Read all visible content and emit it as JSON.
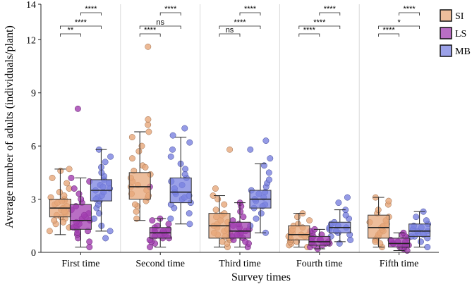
{
  "chart_data": {
    "type": "boxplot",
    "title": "",
    "xlabel": "Survey times",
    "ylabel": "Average number of adults (individuals/plant)",
    "ylim": [
      0,
      14
    ],
    "yticks": [
      0,
      3,
      6,
      9,
      12,
      14
    ],
    "categories": [
      "First time",
      "Second time",
      "Third time",
      "Fourth time",
      "Fifth time"
    ],
    "series": [
      {
        "name": "SI",
        "color": "#E7A77A",
        "edge": "#9a6a48",
        "boxes": [
          {
            "min": 1.0,
            "q1": 2.0,
            "median": 2.5,
            "q3": 3.0,
            "max": 4.7
          },
          {
            "min": 1.8,
            "q1": 3.0,
            "median": 3.7,
            "q3": 4.5,
            "max": 6.8
          },
          {
            "min": 0.3,
            "q1": 0.8,
            "median": 1.5,
            "q3": 2.2,
            "max": 3.2
          },
          {
            "min": 0.3,
            "q1": 0.7,
            "median": 1.0,
            "q3": 1.5,
            "max": 2.2
          },
          {
            "min": 0.3,
            "q1": 0.8,
            "median": 1.4,
            "q3": 2.1,
            "max": 3.1
          }
        ],
        "points": [
          [
            1.2,
            1.4,
            1.6,
            1.8,
            1.9,
            2.0,
            2.1,
            2.2,
            2.3,
            2.4,
            2.5,
            2.5,
            2.6,
            2.7,
            2.8,
            2.9,
            3.0,
            3.1,
            3.2,
            3.4,
            3.6,
            3.9,
            4.2,
            4.6,
            4.7,
            2.3,
            1.7,
            2.9
          ],
          [
            1.9,
            2.3,
            2.6,
            2.9,
            3.1,
            3.3,
            3.5,
            3.7,
            3.8,
            4.0,
            4.2,
            4.4,
            4.6,
            4.9,
            5.3,
            5.7,
            6.0,
            6.5,
            6.8,
            7.2,
            7.5,
            11.6,
            3.2,
            4.8,
            2.7
          ],
          [
            0.3,
            0.5,
            0.7,
            0.8,
            0.9,
            1.0,
            1.1,
            1.2,
            1.3,
            1.4,
            1.5,
            1.6,
            1.7,
            1.8,
            2.0,
            2.1,
            2.2,
            2.4,
            2.7,
            3.0,
            3.2,
            3.6,
            5.8,
            1.1,
            0.6
          ],
          [
            0.3,
            0.4,
            0.5,
            0.6,
            0.7,
            0.8,
            0.9,
            1.0,
            1.0,
            1.1,
            1.2,
            1.3,
            1.4,
            1.5,
            1.6,
            1.8,
            2.0,
            2.2,
            0.9,
            0.6
          ],
          [
            0.3,
            0.5,
            0.7,
            0.8,
            0.9,
            1.0,
            1.1,
            1.2,
            1.3,
            1.4,
            1.5,
            1.6,
            1.8,
            2.0,
            2.2,
            2.4,
            2.7,
            2.9,
            3.1,
            1.7,
            0.6
          ]
        ]
      },
      {
        "name": "LS",
        "color": "#A23DB0",
        "edge": "#5a1f63",
        "boxes": [
          {
            "min": 0.3,
            "q1": 1.3,
            "median": 1.8,
            "q3": 2.7,
            "max": 4.2
          },
          {
            "min": 0.3,
            "q1": 0.8,
            "median": 1.1,
            "q3": 1.4,
            "max": 1.9
          },
          {
            "min": 0.3,
            "q1": 0.8,
            "median": 1.2,
            "q3": 1.7,
            "max": 2.8
          },
          {
            "min": 0.2,
            "q1": 0.4,
            "median": 0.6,
            "q3": 0.9,
            "max": 1.3
          },
          {
            "min": 0.1,
            "q1": 0.3,
            "median": 0.5,
            "q3": 0.8,
            "max": 1.1
          }
        ],
        "points": [
          [
            0.3,
            0.6,
            0.8,
            1.0,
            1.2,
            1.3,
            1.4,
            1.5,
            1.6,
            1.7,
            1.8,
            1.9,
            2.0,
            2.2,
            2.4,
            2.6,
            2.8,
            3.0,
            3.3,
            3.6,
            4.0,
            4.2,
            8.1,
            1.1,
            2.1
          ],
          [
            0.3,
            0.5,
            0.6,
            0.7,
            0.8,
            0.9,
            1.0,
            1.0,
            1.1,
            1.2,
            1.3,
            1.4,
            1.5,
            1.6,
            1.8,
            1.9,
            3.7,
            0.8,
            1.2
          ],
          [
            0.3,
            0.5,
            0.7,
            0.8,
            0.9,
            1.0,
            1.1,
            1.2,
            1.3,
            1.4,
            1.5,
            1.6,
            1.8,
            2.0,
            2.3,
            2.6,
            2.8,
            0.6,
            1.0
          ],
          [
            0.2,
            0.3,
            0.4,
            0.5,
            0.5,
            0.6,
            0.6,
            0.7,
            0.8,
            0.9,
            1.0,
            1.1,
            1.2,
            1.3,
            0.4,
            0.7
          ],
          [
            0.1,
            0.2,
            0.3,
            0.4,
            0.4,
            0.5,
            0.5,
            0.6,
            0.7,
            0.8,
            0.9,
            1.0,
            1.1,
            0.3,
            0.6
          ]
        ]
      },
      {
        "name": "MB",
        "color": "#7A82E0",
        "edge": "#3c4393",
        "boxes": [
          {
            "min": 1.2,
            "q1": 2.9,
            "median": 3.5,
            "q3": 4.1,
            "max": 5.8
          },
          {
            "min": 1.6,
            "q1": 2.8,
            "median": 3.4,
            "q3": 4.2,
            "max": 6.5
          },
          {
            "min": 1.1,
            "q1": 2.5,
            "median": 3.0,
            "q3": 3.5,
            "max": 5.0
          },
          {
            "min": 0.6,
            "q1": 1.1,
            "median": 1.4,
            "q3": 1.7,
            "max": 2.4
          },
          {
            "min": 0.3,
            "q1": 0.9,
            "median": 1.2,
            "q3": 1.6,
            "max": 2.3
          }
        ],
        "points": [
          [
            1.2,
            1.5,
            1.9,
            2.2,
            2.5,
            2.7,
            2.9,
            3.1,
            3.2,
            3.4,
            3.5,
            3.6,
            3.8,
            3.9,
            4.1,
            4.3,
            4.5,
            4.8,
            5.1,
            5.4,
            5.8,
            0.8,
            3.0,
            3.7
          ],
          [
            1.6,
            1.9,
            2.2,
            2.5,
            2.8,
            3.0,
            3.1,
            3.3,
            3.4,
            3.6,
            3.8,
            4.0,
            4.2,
            4.4,
            4.7,
            5.0,
            5.4,
            5.8,
            6.2,
            6.6,
            7.0,
            3.2,
            2.7
          ],
          [
            1.1,
            1.5,
            1.9,
            2.2,
            2.5,
            2.7,
            2.9,
            3.0,
            3.1,
            3.3,
            3.5,
            3.7,
            3.9,
            4.1,
            4.5,
            4.9,
            5.3,
            5.8,
            6.3,
            2.6,
            3.4
          ],
          [
            0.5,
            0.7,
            0.9,
            1.1,
            1.2,
            1.3,
            1.4,
            1.5,
            1.6,
            1.7,
            1.9,
            2.1,
            2.4,
            2.8,
            3.1,
            1.0,
            1.4
          ],
          [
            0.3,
            0.6,
            0.8,
            0.9,
            1.0,
            1.1,
            1.2,
            1.3,
            1.4,
            1.5,
            1.6,
            1.8,
            2.0,
            2.3,
            1.2,
            0.9
          ]
        ]
      }
    ],
    "significance": [
      [
        {
          "pair": "SI-LS",
          "label": "**"
        },
        {
          "pair": "SI-MB",
          "label": "****"
        },
        {
          "pair": "LS-MB",
          "label": "****"
        }
      ],
      [
        {
          "pair": "SI-LS",
          "label": "****"
        },
        {
          "pair": "SI-MB",
          "label": "ns"
        },
        {
          "pair": "LS-MB",
          "label": "****"
        }
      ],
      [
        {
          "pair": "SI-LS",
          "label": "ns"
        },
        {
          "pair": "SI-MB",
          "label": "****"
        },
        {
          "pair": "LS-MB",
          "label": "****"
        }
      ],
      [
        {
          "pair": "SI-LS",
          "label": "****"
        },
        {
          "pair": "SI-MB",
          "label": "****"
        },
        {
          "pair": "LS-MB",
          "label": "****"
        }
      ],
      [
        {
          "pair": "SI-LS",
          "label": "****"
        },
        {
          "pair": "SI-MB",
          "label": "*"
        },
        {
          "pair": "LS-MB",
          "label": "****"
        }
      ]
    ],
    "legend": {
      "position": "right",
      "entries": [
        "SI",
        "LS",
        "MB"
      ]
    }
  }
}
